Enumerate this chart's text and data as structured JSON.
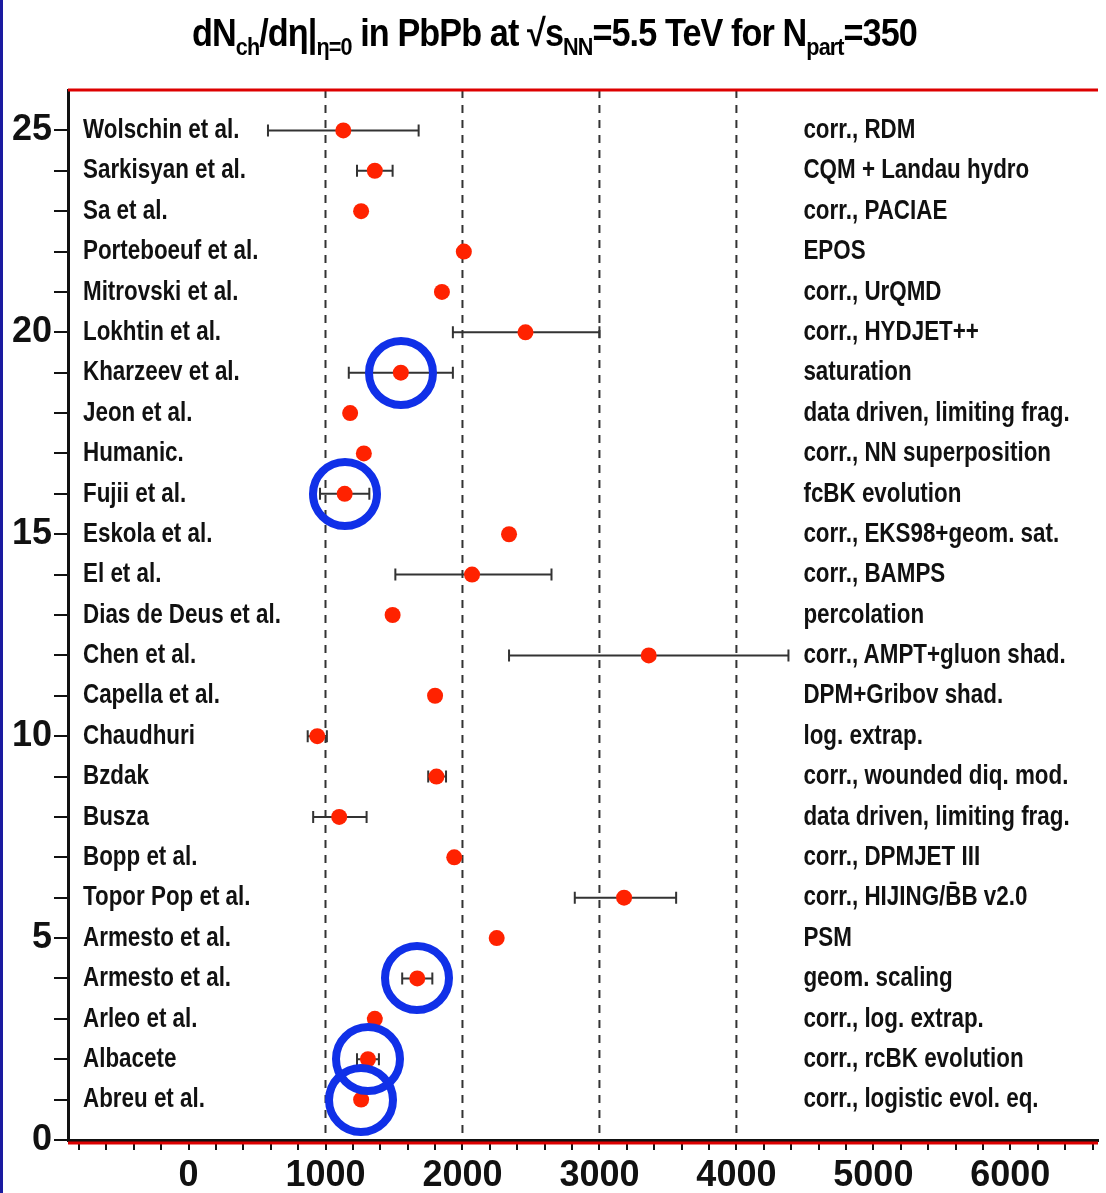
{
  "chart_data": {
    "type": "scatter",
    "title": "dN$_{ch}$/dη|$_{η=0}$ in PbPb at √s$_{NN}$=5.5 TeV for N$_{part}$=350",
    "series": [
      {
        "color": "#ff2200",
        "x": [
          1130,
          1360,
          1260,
          2010,
          1850,
          2460,
          1550,
          1180,
          1280,
          1140,
          2340,
          2070,
          1490,
          3360,
          1800,
          940,
          1810,
          1100,
          1940,
          3180,
          2250,
          1670,
          1360,
          1310,
          1260
        ],
        "values": [
          25,
          24,
          23,
          22,
          21,
          20,
          19,
          18,
          17,
          16,
          15,
          14,
          13,
          12,
          11,
          10,
          9,
          8,
          7,
          6,
          5,
          4,
          3,
          2,
          1
        ],
        "xerrors": [
          [
            580,
            1680
          ],
          [
            1230,
            1490
          ],
          null,
          null,
          null,
          [
            1930,
            3000
          ],
          [
            1170,
            1930
          ],
          null,
          null,
          [
            960,
            1320
          ],
          null,
          [
            1510,
            2650
          ],
          null,
          [
            2340,
            4380
          ],
          null,
          [
            870,
            1010
          ],
          [
            1750,
            1880
          ],
          [
            910,
            1300
          ],
          null,
          [
            2820,
            3560
          ],
          null,
          [
            1560,
            1780
          ],
          null,
          [
            1230,
            1390
          ],
          null
        ]
      }
    ],
    "marker": "circle",
    "grid": false,
    "legend": false,
    "xlim": [
      -880,
      6640
    ],
    "xticks": [
      {
        "value": -800,
        "label": null
      },
      {
        "value": -600,
        "label": null
      },
      {
        "value": -400,
        "label": null
      },
      {
        "value": -200,
        "label": null
      },
      0,
      {
        "value": 200,
        "label": null
      },
      {
        "value": 400,
        "label": null
      },
      {
        "value": 600,
        "label": null
      },
      {
        "value": 800,
        "label": null
      },
      1000,
      {
        "value": 1200,
        "label": null
      },
      {
        "value": 1400,
        "label": null
      },
      {
        "value": 1600,
        "label": null
      },
      {
        "value": 1800,
        "label": null
      },
      2000,
      {
        "value": 2200,
        "label": null
      },
      {
        "value": 2400,
        "label": null
      },
      {
        "value": 2600,
        "label": null
      },
      {
        "value": 2800,
        "label": null
      },
      3000,
      {
        "value": 3200,
        "label": null
      },
      {
        "value": 3400,
        "label": null
      },
      {
        "value": 3600,
        "label": null
      },
      {
        "value": 3800,
        "label": null
      },
      4000,
      {
        "value": 4200,
        "label": null
      },
      {
        "value": 4400,
        "label": null
      },
      {
        "value": 4600,
        "label": null
      },
      {
        "value": 4800,
        "label": null
      },
      5000,
      {
        "value": 5200,
        "label": null
      },
      {
        "value": 5400,
        "label": null
      },
      {
        "value": 5600,
        "label": null
      },
      {
        "value": 5800,
        "label": null
      },
      6000,
      {
        "value": 6200,
        "label": null
      },
      {
        "value": 6400,
        "label": null
      },
      {
        "value": 6600,
        "label": null
      }
    ],
    "ylim": [
      0,
      26
    ],
    "yticks": [
      0,
      {
        "value": 1,
        "label": null
      },
      {
        "value": 2,
        "label": null
      },
      {
        "value": 3,
        "label": null
      },
      {
        "value": 4,
        "label": null
      },
      5,
      {
        "value": 6,
        "label": null
      },
      {
        "value": 7,
        "label": null
      },
      {
        "value": 8,
        "label": null
      },
      {
        "value": 9,
        "label": null
      },
      10,
      {
        "value": 11,
        "label": null
      },
      {
        "value": 12,
        "label": null
      },
      {
        "value": 13,
        "label": null
      },
      {
        "value": 14,
        "label": null
      },
      15,
      {
        "value": 16,
        "label": null
      },
      {
        "value": 17,
        "label": null
      },
      {
        "value": 18,
        "label": null
      },
      {
        "value": 19,
        "label": null
      },
      20,
      {
        "value": 21,
        "label": null
      },
      {
        "value": 22,
        "label": null
      },
      {
        "value": 23,
        "label": null
      },
      {
        "value": 24,
        "label": null
      },
      25
    ],
    "ref_lines": [
      {
        "axis": "x",
        "value": 1000,
        "line_style": "dashed",
        "color": "#333333"
      },
      {
        "axis": "x",
        "value": 2000,
        "line_style": "dashed",
        "color": "#333333"
      },
      {
        "axis": "x",
        "value": 3000,
        "line_style": "dashed",
        "color": "#333333"
      },
      {
        "axis": "x",
        "value": 4000,
        "line_style": "dashed",
        "color": "#333333"
      }
    ],
    "annotations": [
      "Wolschin et al.",
      "Sarkisyan et al.",
      "Sa et al.",
      "Porteboeuf et al.",
      "Mitrovski et al.",
      "Lokhtin et al.",
      "Kharzeev et al.",
      "Jeon et al.",
      "Humanic.",
      "Fujii et al.",
      "Eskola et al.",
      "El et al.",
      "Dias de Deus et al.",
      "Chen et al.",
      "Capella et al.",
      "Chaudhuri",
      "Bzdak",
      "Busza",
      "Bopp et al.",
      "Topor Pop et al.",
      "Armesto et al.",
      "Armesto et al.",
      "Arleo et al.",
      "Albacete",
      "Abreu et al.",
      "corr., RDM",
      "CQM + Landau hydro",
      "corr., PACIAE",
      "EPOS",
      "corr., UrQMD",
      "corr., HYDJET++",
      "saturation",
      "data driven, limiting frag.",
      "corr., NN superposition",
      "fcBK evolution",
      "corr., EKS98+geom. sat.",
      "corr., BAMPS",
      "percolation",
      "corr., AMPT+gluon shad.",
      "DPM+Gribov shad.",
      "log. extrap.",
      "corr., wounded diq. mod.",
      "data driven, limiting frag.",
      "corr., DPMJET III",
      "corr., HIJING/B̄B v2.0",
      "PSM",
      "geom. scaling",
      "corr., log. extrap.",
      "corr., rcBK evolution",
      "corr., logistic evol. eq."
    ]
  }
}
